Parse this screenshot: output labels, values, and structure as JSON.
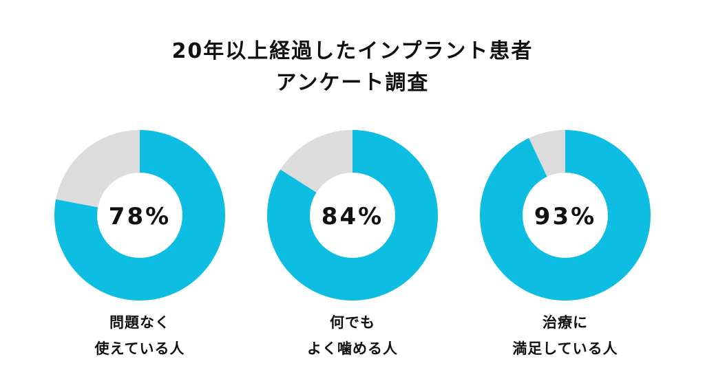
{
  "title": {
    "line1": "20年以上経過したインプラント患者",
    "line2": "アンケート調査"
  },
  "colors": {
    "primary": "#0ebde2",
    "remainder": "#dcdcdc",
    "center": "#ffffff",
    "text": "#111111"
  },
  "chart_data": [
    {
      "type": "pie",
      "values": [
        78,
        22
      ],
      "display_value": "78%",
      "caption_lines": [
        "問題なく",
        "使えている人"
      ]
    },
    {
      "type": "pie",
      "values": [
        84,
        16
      ],
      "display_value": "84%",
      "caption_lines": [
        "何でも",
        "よく噛める人"
      ]
    },
    {
      "type": "pie",
      "values": [
        93,
        7
      ],
      "display_value": "93%",
      "caption_lines": [
        "治療に",
        "満足している人"
      ]
    }
  ]
}
